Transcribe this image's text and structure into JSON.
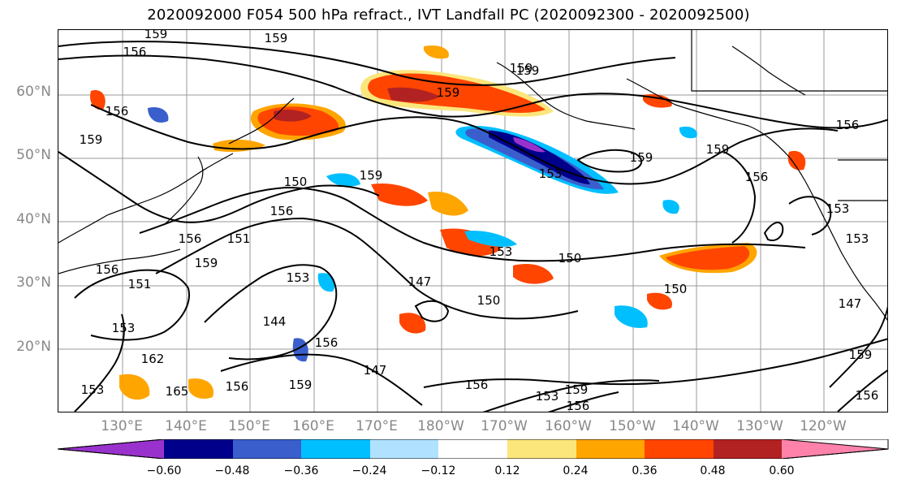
{
  "title": "2020092000 F054 500 hPa refract., IVT Landfall PC (2020092300 - 2020092500)",
  "lat_labels": [
    "60°N",
    "50°N",
    "40°N",
    "30°N",
    "20°N"
  ],
  "lon_labels": [
    "130°E",
    "140°E",
    "150°E",
    "160°E",
    "170°E",
    "180°W",
    "170°W",
    "160°W",
    "150°W",
    "140°W",
    "130°W",
    "120°W"
  ],
  "colorbar": {
    "colors": [
      "#9932cc",
      "#00008b",
      "#3a5fcd",
      "#00bfff",
      "#b0e2ff",
      "#ffffff",
      "#fbe67c",
      "#ffa500",
      "#ff4500",
      "#b22222",
      "#ff82ab"
    ],
    "ticks": [
      "−0.60",
      "−0.48",
      "−0.36",
      "−0.24",
      "−0.12",
      "0.12",
      "0.24",
      "0.36",
      "0.48",
      "0.60"
    ]
  },
  "contour_labels": [
    "159",
    "159",
    "156",
    "156",
    "159",
    "159",
    "159",
    "156",
    "159",
    "150",
    "159",
    "153",
    "159",
    "156",
    "156",
    "156",
    "153",
    "159",
    "151",
    "150",
    "153",
    "150",
    "147",
    "150",
    "147",
    "144",
    "153",
    "153",
    "156",
    "162",
    "159",
    "156",
    "153",
    "156",
    "165",
    "156",
    "147",
    "159",
    "159",
    "156",
    "159",
    "156",
    "153",
    "151",
    "153"
  ]
}
